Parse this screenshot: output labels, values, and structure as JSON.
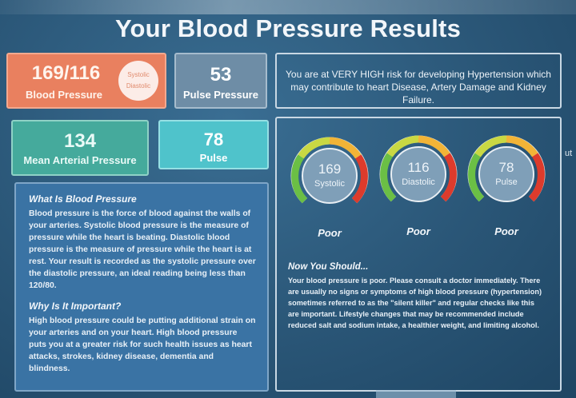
{
  "page_title": "Your Blood Pressure Results",
  "blood_pressure": {
    "value": "169/116",
    "label": "Blood Pressure",
    "systolic_tag": "Systolic",
    "diastolic_tag": "Diastolic"
  },
  "pulse_pressure": {
    "value": "53",
    "label": "Pulse Pressure"
  },
  "risk_message": "You are at VERY HIGH risk for developing Hypertension which may contribute to heart Disease, Artery Damage and Kidney Failure.",
  "mean_arterial": {
    "value": "134",
    "label": "Mean Arterial Pressure"
  },
  "pulse": {
    "value": "78",
    "label": "Pulse"
  },
  "info": {
    "what_heading": "What Is Blood Pressure",
    "what_text": "Blood pressure is the force of blood against the walls of your arteries. Systolic blood pressure is the measure of pressure while the heart is beating. Diastolic blood pressure is the measure of pressure while the heart is at rest. Your result is recorded as the systolic pressure over the diastolic pressure, an ideal reading being less than 120/80.",
    "why_heading": "Why Is It Important?",
    "why_text": "High blood pressure could be putting additional strain on your arteries and on your heart. High blood pressure puts you at a greater risk for such health issues as heart attacks, strokes, kidney disease, dementia and blindness."
  },
  "gauges": [
    {
      "value": "169",
      "label": "Systolic",
      "status": "Poor"
    },
    {
      "value": "116",
      "label": "Diastolic",
      "status": "Poor"
    },
    {
      "value": "78",
      "label": "Pulse",
      "status": "Poor"
    }
  ],
  "advice": {
    "heading": "Now You Should...",
    "text": "Your blood pressure is poor. Please consult a doctor immediately. There are usually no signs or symptoms of high blood pressure (hypertension) sometimes referred to as the \"silent killer\" and regular checks like this are important. Lifestyle changes that may be recommended include reduced salt and sodium intake, a healthier weight, and limiting alcohol."
  },
  "edge_text": "ut",
  "colors": {
    "bp_card": "#e9805f",
    "pulse_pressure_card": "#6e8da6",
    "mean_arterial_card": "#45aa9c",
    "pulse_card": "#4fc3cb",
    "info_panel": "#3a73a4"
  }
}
